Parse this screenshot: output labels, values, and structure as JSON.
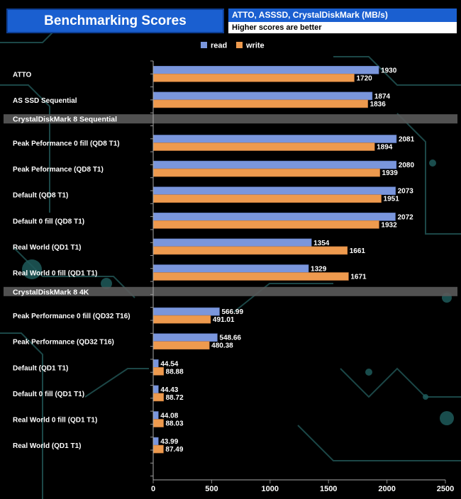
{
  "header": {
    "title": "Benchmarking Scores",
    "subtitle": "ATTO, ASSSD, CrystalDiskMark (MB/s)",
    "note": "Higher scores are better"
  },
  "colors": {
    "read": "#7a96dc",
    "write": "#ee9a4e",
    "section_band": "#5a5a5a",
    "title_bg": "#1a5fd0"
  },
  "chart_data": {
    "type": "bar",
    "orientation": "horizontal",
    "title": "Benchmarking Scores",
    "subtitle": "ATTO, ASSSD, CrystalDiskMark (MB/s)",
    "note": "Higher scores are better",
    "legend": [
      "read",
      "write"
    ],
    "legend_position": "top",
    "xlim": [
      0,
      2500
    ],
    "xticks": [
      0,
      500,
      1000,
      1500,
      2000,
      2500
    ],
    "rows": [
      {
        "kind": "bar",
        "label": "ATTO",
        "read": 1930,
        "write": 1720,
        "read_label": "1930",
        "write_label": "1720"
      },
      {
        "kind": "bar",
        "label": "AS SSD Sequential",
        "read": 1874,
        "write": 1836,
        "read_label": "1874",
        "write_label": "1836"
      },
      {
        "kind": "section",
        "label": "CrystalDiskMark 8 Sequential"
      },
      {
        "kind": "bar",
        "label": "Peak Peformance 0 fill (QD8 T1)",
        "read": 2081,
        "write": 1894,
        "read_label": "2081",
        "write_label": "1894"
      },
      {
        "kind": "bar",
        "label": "Peak Peformance (QD8 T1)",
        "read": 2080,
        "write": 1939,
        "read_label": "2080",
        "write_label": "1939"
      },
      {
        "kind": "bar",
        "label": "Default (QD8 T1)",
        "read": 2073,
        "write": 1951,
        "read_label": "2073",
        "write_label": "1951"
      },
      {
        "kind": "bar",
        "label": "Default 0 fill (QD8 T1)",
        "read": 2072,
        "write": 1932,
        "read_label": "2072",
        "write_label": "1932"
      },
      {
        "kind": "bar",
        "label": "Real World (QD1 T1)",
        "read": 1354,
        "write": 1661,
        "read_label": "1354",
        "write_label": "1661"
      },
      {
        "kind": "bar",
        "label": "Real World 0 fill (QD1 T1)",
        "read": 1329,
        "write": 1671,
        "read_label": "1329",
        "write_label": "1671"
      },
      {
        "kind": "section",
        "label": "CrystalDiskMark 8 4K"
      },
      {
        "kind": "bar",
        "label": "Peak Performance 0 fill (QD32 T16)",
        "read": 566.99,
        "write": 491.01,
        "read_label": "566.99",
        "write_label": "491.01"
      },
      {
        "kind": "bar",
        "label": "Peak Performance (QD32 T16)",
        "read": 548.66,
        "write": 480.38,
        "read_label": "548.66",
        "write_label": "480.38"
      },
      {
        "kind": "bar",
        "label": "Default (QD1 T1)",
        "read": 44.54,
        "write": 88.88,
        "read_label": "44.54",
        "write_label": "88.88"
      },
      {
        "kind": "bar",
        "label": "Default 0 fill (QD1 T1)",
        "read": 44.43,
        "write": 88.72,
        "read_label": "44.43",
        "write_label": "88.72"
      },
      {
        "kind": "bar",
        "label": "Real World 0 fill  (QD1 T1)",
        "read": 44.08,
        "write": 88.03,
        "read_label": "44.08",
        "write_label": "88.03"
      },
      {
        "kind": "bar",
        "label": "Real World  (QD1 T1)",
        "read": 43.99,
        "write": 87.49,
        "read_label": "43.99",
        "write_label": "87.49"
      }
    ]
  }
}
